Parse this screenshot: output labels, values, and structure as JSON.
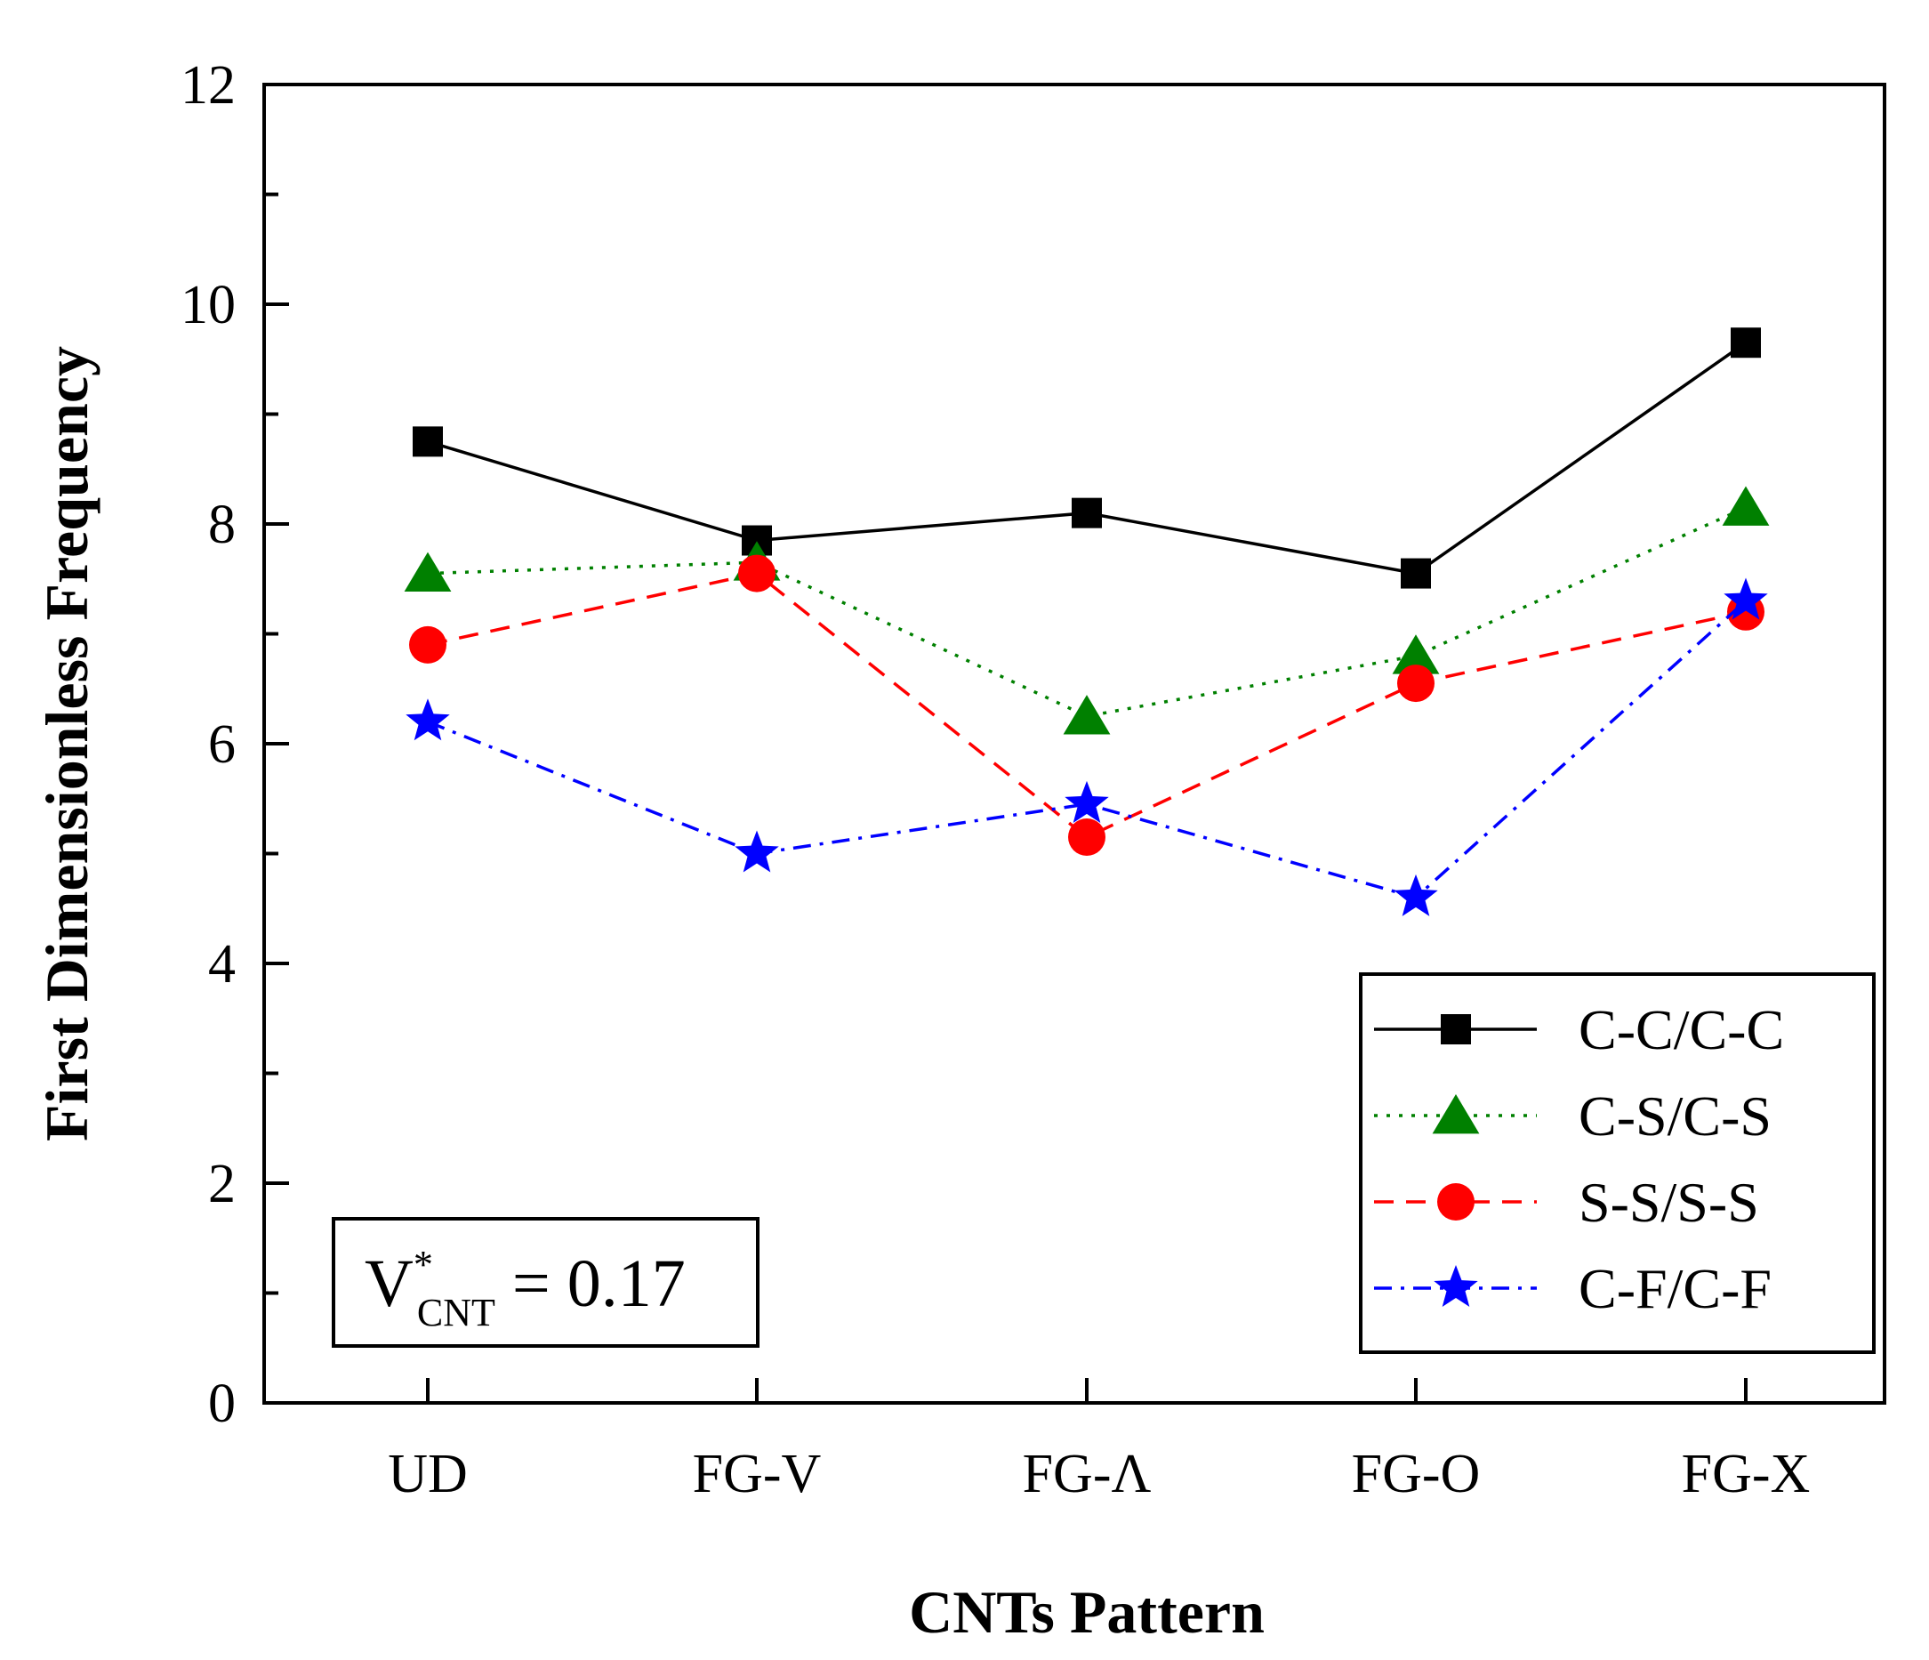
{
  "chart_data": {
    "type": "line",
    "xlabel": "CNTs Pattern",
    "ylabel": "First Dimensionless Frequency",
    "categories": [
      "UD",
      "FG-V",
      "FG-Λ",
      "FG-O",
      "FG-X"
    ],
    "ylim": [
      0,
      12
    ],
    "yticks": [
      "0",
      "2",
      "4",
      "6",
      "8",
      "10",
      "12"
    ],
    "grid": false,
    "legend_position": "bottom-right",
    "series": [
      {
        "name": "C-C/C-C",
        "values": [
          8.75,
          7.85,
          8.1,
          7.55,
          9.65
        ],
        "color": "#000000",
        "marker": "square",
        "line": "solid"
      },
      {
        "name": "C-S/C-S",
        "values": [
          7.55,
          7.65,
          6.25,
          6.8,
          8.15
        ],
        "color": "#008000",
        "marker": "triangle",
        "line": "dotted"
      },
      {
        "name": "S-S/S-S",
        "values": [
          6.9,
          7.55,
          5.15,
          6.55,
          7.2
        ],
        "color": "#ff0000",
        "marker": "circle",
        "line": "dashed"
      },
      {
        "name": "C-F/C-F",
        "values": [
          6.2,
          5.0,
          5.45,
          4.6,
          7.3
        ],
        "color": "#0000ff",
        "marker": "star",
        "line": "dashdot"
      }
    ],
    "annotation": {
      "symbol": "V",
      "superscript": "*",
      "subscript": "CNT",
      "rest": " = 0.17"
    }
  }
}
